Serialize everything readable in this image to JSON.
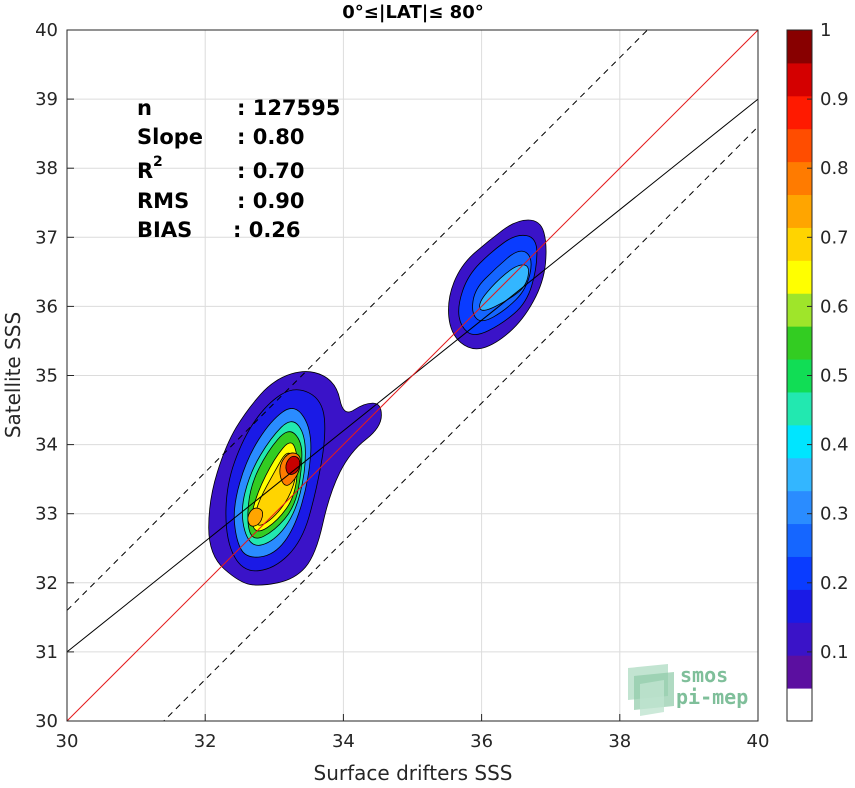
{
  "chart_data": {
    "type": "contour",
    "title": "0°≤|LAT|≤ 80°",
    "xlabel": "Surface drifters SSS",
    "ylabel": "Satellite SSS",
    "xlim": [
      30,
      40
    ],
    "ylim": [
      30,
      40
    ],
    "x_ticks": [
      "30",
      "32",
      "34",
      "36",
      "38",
      "40"
    ],
    "y_ticks": [
      "30",
      "31",
      "32",
      "33",
      "34",
      "35",
      "36",
      "37",
      "38",
      "39",
      "40"
    ],
    "grid": true,
    "stats": [
      {
        "label": "n",
        "value": ": 127595"
      },
      {
        "label": "Slope",
        "value": ": 0.80"
      },
      {
        "label": "R",
        "sup": "2",
        "value": ": 0.70"
      },
      {
        "label": "RMS",
        "value": ": 0.90"
      },
      {
        "label": "BIAS",
        "value": ": 0.26"
      }
    ],
    "lines": {
      "identity": {
        "slope": 1,
        "intercept": 0,
        "color": "#e41a1c"
      },
      "fit": {
        "slope": 0.8,
        "intercept": 7.0,
        "color": "#000000"
      },
      "upper_dashed": {
        "slope": 1,
        "intercept": 1.6,
        "color": "#000000"
      },
      "lower_dashed": {
        "slope": 1,
        "intercept": -1.4,
        "color": "#000000"
      }
    },
    "colorbar": {
      "min": 0,
      "max": 1,
      "ticks": [
        "0.1",
        "0.2",
        "0.3",
        "0.4",
        "0.5",
        "0.6",
        "0.7",
        "0.8",
        "0.9",
        "1"
      ],
      "colors": [
        "#ffffff",
        "#5b0fa0",
        "#3a13c8",
        "#1a1ae6",
        "#0a3cff",
        "#1566ff",
        "#2a8cff",
        "#33b6ff",
        "#00e5ff",
        "#22e8b0",
        "#11dd55",
        "#33cc22",
        "#9fe52a",
        "#ffff00",
        "#ffd400",
        "#ffa500",
        "#ff7b00",
        "#ff4d00",
        "#ff1a00",
        "#d40000",
        "#880000"
      ]
    },
    "clusters": [
      {
        "name": "cluster-low",
        "cx": 33.0,
        "cy": 33.3,
        "levels": [
          [
            [
              32.5,
              32.0
            ],
            [
              32.8,
              31.95
            ],
            [
              33.3,
              32.05
            ],
            [
              33.6,
              32.4
            ],
            [
              33.8,
              33.3
            ],
            [
              34.1,
              33.9
            ],
            [
              34.55,
              34.25
            ],
            [
              34.55,
              34.6
            ],
            [
              34.3,
              34.6
            ],
            [
              34.0,
              34.4
            ],
            [
              33.9,
              34.9
            ],
            [
              33.5,
              35.1
            ],
            [
              33.0,
              34.95
            ],
            [
              32.6,
              34.5
            ],
            [
              32.3,
              34.0
            ],
            [
              32.05,
              33.2
            ],
            [
              32.05,
              32.4
            ]
          ],
          [
            [
              32.55,
              32.15
            ],
            [
              33.0,
              32.2
            ],
            [
              33.4,
              32.6
            ],
            [
              33.6,
              33.3
            ],
            [
              33.75,
              34.1
            ],
            [
              33.7,
              34.65
            ],
            [
              33.3,
              34.85
            ],
            [
              32.9,
              34.6
            ],
            [
              32.55,
              34.1
            ],
            [
              32.3,
              33.4
            ],
            [
              32.3,
              32.6
            ]
          ],
          [
            [
              32.6,
              32.35
            ],
            [
              33.0,
              32.4
            ],
            [
              33.3,
              32.8
            ],
            [
              33.5,
              33.5
            ],
            [
              33.55,
              34.2
            ],
            [
              33.3,
              34.6
            ],
            [
              32.95,
              34.35
            ],
            [
              32.6,
              33.8
            ],
            [
              32.4,
              33.1
            ],
            [
              32.45,
              32.6
            ]
          ],
          [
            [
              32.65,
              32.5
            ],
            [
              33.0,
              32.6
            ],
            [
              33.3,
              33.0
            ],
            [
              33.45,
              33.6
            ],
            [
              33.45,
              34.15
            ],
            [
              33.25,
              34.4
            ],
            [
              32.95,
              34.1
            ],
            [
              32.65,
              33.6
            ],
            [
              32.5,
              33.0
            ]
          ],
          [
            [
              32.7,
              32.6
            ],
            [
              33.0,
              32.75
            ],
            [
              33.3,
              33.1
            ],
            [
              33.4,
              33.65
            ],
            [
              33.4,
              34.05
            ],
            [
              33.2,
              34.25
            ],
            [
              32.9,
              33.9
            ],
            [
              32.65,
              33.4
            ],
            [
              32.6,
              32.85
            ]
          ],
          [
            [
              32.75,
              32.7
            ],
            [
              33.05,
              32.9
            ],
            [
              33.3,
              33.25
            ],
            [
              33.35,
              33.8
            ],
            [
              33.25,
              34.1
            ],
            [
              33.0,
              33.8
            ],
            [
              32.75,
              33.3
            ],
            [
              32.65,
              32.9
            ]
          ],
          [
            [
              32.8,
              32.8
            ],
            [
              33.05,
              33.0
            ],
            [
              33.25,
              33.3
            ],
            [
              33.35,
              33.7
            ],
            [
              33.2,
              33.95
            ],
            [
              33.0,
              33.6
            ],
            [
              32.78,
              33.2
            ],
            [
              32.7,
              32.9
            ]
          ],
          [
            [
              32.65,
              32.8
            ],
            [
              32.8,
              32.85
            ],
            [
              32.85,
              33.05
            ],
            [
              32.7,
              33.1
            ],
            [
              32.6,
              32.95
            ]
          ],
          [
            [
              33.15,
              33.35
            ],
            [
              33.35,
              33.55
            ],
            [
              33.4,
              33.85
            ],
            [
              33.2,
              33.9
            ],
            [
              33.05,
              33.65
            ]
          ],
          [
            [
              33.2,
              33.55
            ],
            [
              33.35,
              33.6
            ],
            [
              33.38,
              33.8
            ],
            [
              33.25,
              33.85
            ],
            [
              33.15,
              33.7
            ]
          ]
        ]
      },
      {
        "name": "cluster-high",
        "cx": 36.2,
        "cy": 36.0,
        "levels": [
          [
            [
              35.85,
              35.35
            ],
            [
              36.2,
              35.45
            ],
            [
              36.6,
              35.8
            ],
            [
              36.9,
              36.35
            ],
            [
              36.95,
              36.9
            ],
            [
              36.85,
              37.25
            ],
            [
              36.5,
              37.25
            ],
            [
              36.1,
              36.95
            ],
            [
              35.7,
              36.6
            ],
            [
              35.5,
              36.1
            ],
            [
              35.55,
              35.6
            ]
          ],
          [
            [
              35.9,
              35.55
            ],
            [
              36.3,
              35.75
            ],
            [
              36.65,
              36.05
            ],
            [
              36.8,
              36.55
            ],
            [
              36.8,
              37.0
            ],
            [
              36.5,
              37.05
            ],
            [
              36.15,
              36.8
            ],
            [
              35.8,
              36.45
            ],
            [
              35.65,
              36.0
            ],
            [
              35.7,
              35.7
            ]
          ],
          [
            [
              36.0,
              35.75
            ],
            [
              36.35,
              35.95
            ],
            [
              36.65,
              36.25
            ],
            [
              36.75,
              36.7
            ],
            [
              36.55,
              36.85
            ],
            [
              36.2,
              36.55
            ],
            [
              35.9,
              36.25
            ],
            [
              35.85,
              35.9
            ]
          ],
          [
            [
              36.0,
              35.9
            ],
            [
              36.4,
              36.1
            ],
            [
              36.65,
              36.3
            ],
            [
              36.7,
              36.6
            ],
            [
              36.5,
              36.6
            ],
            [
              36.2,
              36.35
            ],
            [
              35.95,
              36.05
            ]
          ]
        ]
      }
    ]
  },
  "watermark": {
    "line1": "smos",
    "line2": "pi-mep"
  }
}
